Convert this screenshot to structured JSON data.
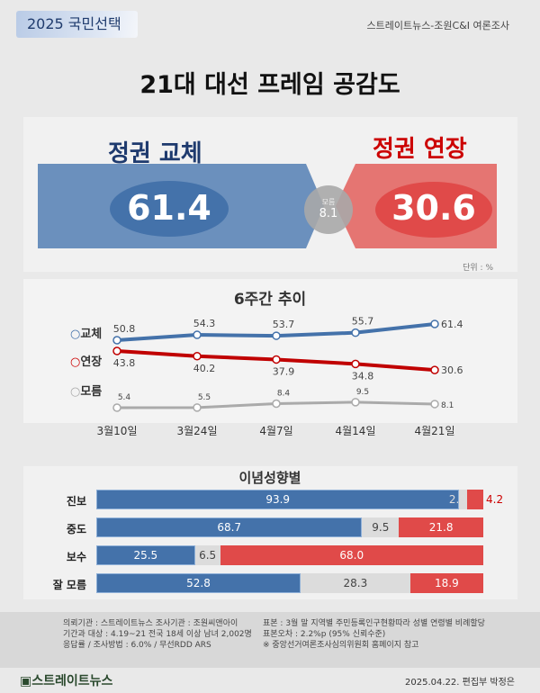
{
  "header": {
    "badge": "2025 국민선택",
    "source": "스트레이트뉴스-조원C&I 여론조사",
    "title": "21대 대선 프레임 공감도"
  },
  "summary": {
    "left_label": "정권 교체",
    "left_value": "61.4",
    "right_label": "정권 연장",
    "right_value": "30.6",
    "mid_label": "모름",
    "mid_value": "8.1",
    "unit": "단위 : %"
  },
  "colors": {
    "blue": "#4472aa",
    "red": "#e04a49",
    "gray": "#aaaaaa",
    "dark_red": "#c00000"
  },
  "chart_data": [
    {
      "type": "line",
      "title": "6주간 추이",
      "categories": [
        "3월10일",
        "3월24일",
        "4월7일",
        "4월14일",
        "4월21일"
      ],
      "series": [
        {
          "name": "교체",
          "values": [
            50.8,
            54.3,
            53.7,
            55.7,
            61.4
          ],
          "color": "#4472aa"
        },
        {
          "name": "연장",
          "values": [
            43.8,
            40.2,
            37.9,
            34.8,
            30.6
          ],
          "color": "#c00000"
        },
        {
          "name": "모름",
          "values": [
            5.4,
            5.5,
            8.4,
            9.5,
            8.1
          ],
          "color": "#aaaaaa"
        }
      ],
      "axis": "broken (non-linear y)",
      "grid": false,
      "legend": "left"
    },
    {
      "type": "bar",
      "stacked": true,
      "orientation": "horizontal",
      "title": "이념성향별",
      "categories": [
        "진보",
        "중도",
        "보수",
        "잘 모름"
      ],
      "series": [
        {
          "values": [
            93.9,
            68.7,
            25.5,
            52.8
          ],
          "color": "#4472aa"
        },
        {
          "values": [
            2.0,
            9.5,
            6.5,
            28.3
          ],
          "color": "#dcdcdc"
        },
        {
          "values": [
            4.2,
            21.8,
            68.0,
            18.9
          ],
          "color": "#e04a49"
        }
      ],
      "xlim": [
        0,
        100
      ]
    }
  ],
  "footer": {
    "notes_left": [
      "의뢰기관 : 스트레이트뉴스  조사기관 : 조원씨앤아이",
      "기간과 대상 : 4.19~21 전국 18세 이상 남녀 2,002명",
      "응답률 / 조사방법 : 6.0% / 무선RDD ARS"
    ],
    "notes_right": [
      "표본 : 3월 말 지역별 주민등록인구현황따라 성별 연령별 비례할당",
      "표본오차 : 2.2%p (95% 신뢰수준)",
      "※ 중앙선거여론조사심의위원회 홈페이지 참고"
    ],
    "logo": "스트레이트뉴스",
    "date": "2025.04.22. 편집부 박정은"
  }
}
